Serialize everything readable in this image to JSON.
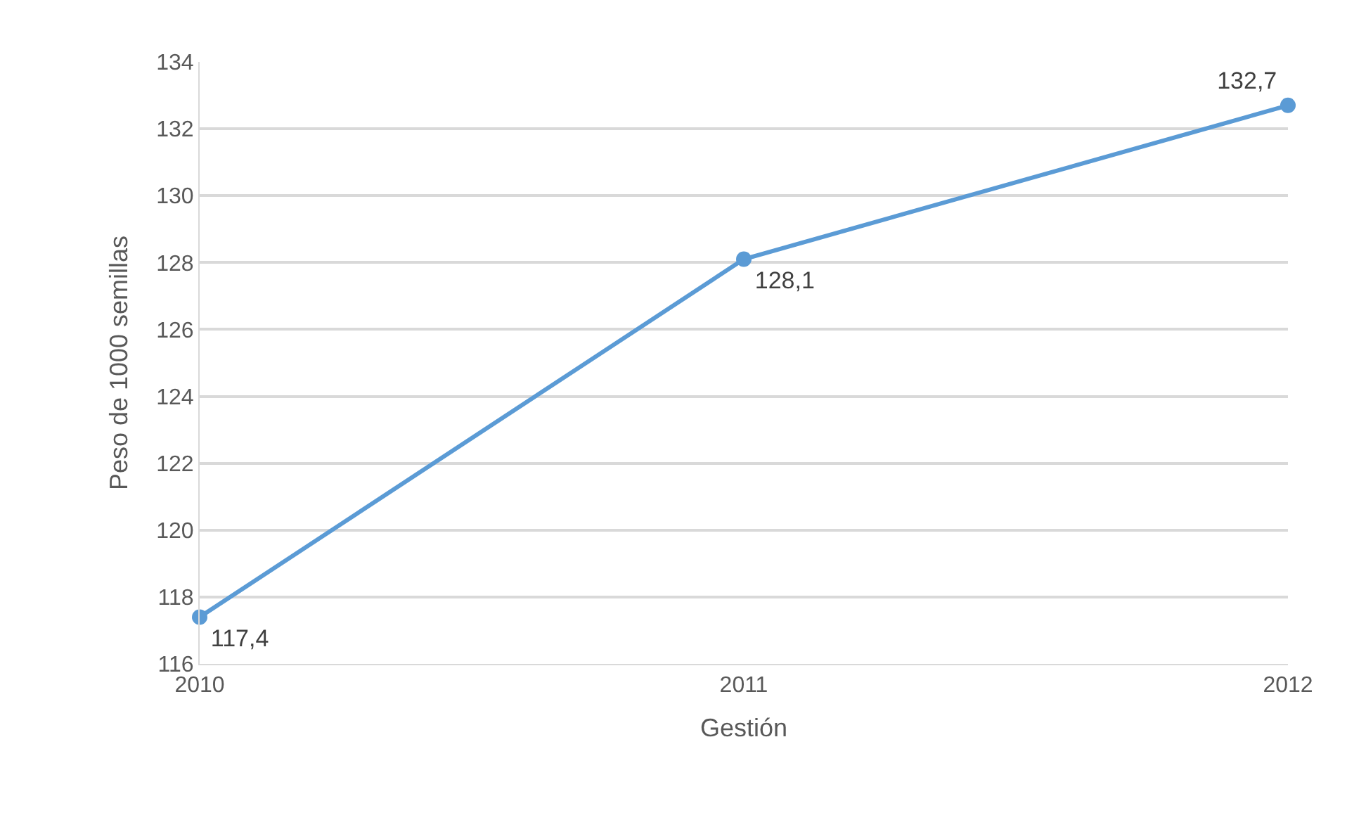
{
  "chart_data": {
    "type": "line",
    "xlabel": "Gestión",
    "ylabel": "Peso de 1000 semillas",
    "categories": [
      "2010",
      "2011",
      "2012"
    ],
    "series": [
      {
        "color": "#5b9bd5",
        "values": [
          117.4,
          128.1,
          132.7
        ],
        "value_labels": [
          "117,4",
          "128,1",
          "132,7"
        ]
      }
    ],
    "ylim": [
      116,
      134
    ],
    "yticks": [
      116,
      118,
      120,
      122,
      124,
      126,
      128,
      130,
      132,
      134
    ],
    "grid": "y",
    "legend": false,
    "marker": "circle",
    "line_style": "solid"
  }
}
